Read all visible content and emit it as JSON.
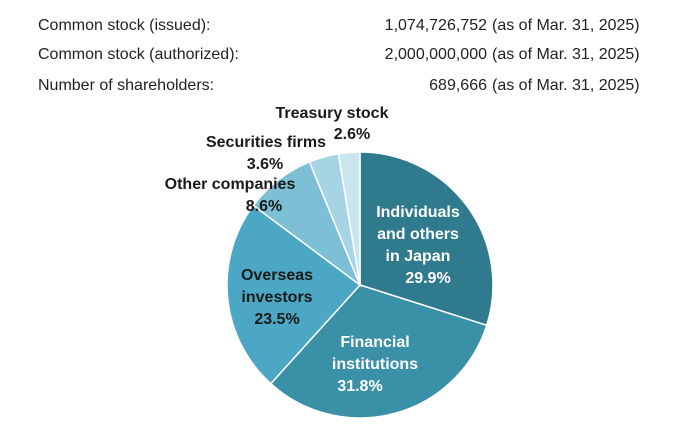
{
  "stats": [
    {
      "label": "Common stock (issued):",
      "value": "1,074,726,752",
      "note": "(as of Mar. 31, 2025)"
    },
    {
      "label": "Common stock (authorized):",
      "value": "2,000,000,000",
      "note": "(as of Mar. 31, 2025)"
    },
    {
      "label": "Number of shareholders:",
      "value": "689,666",
      "note": "(as of Mar. 31, 2025)"
    }
  ],
  "chart_data": {
    "type": "pie",
    "categories": [
      "Individuals and others in Japan",
      "Financial institutions",
      "Overseas investors",
      "Other companies",
      "Securities firms",
      "Treasury stock"
    ],
    "values": [
      29.9,
      31.8,
      23.5,
      8.6,
      3.6,
      2.6
    ],
    "value_labels": [
      "29.9%",
      "31.8%",
      "23.5%",
      "8.6%",
      "3.6%",
      "2.6%"
    ],
    "colors": [
      "#2f7b8d",
      "#3a90a7",
      "#4ba7c3",
      "#7dc0d6",
      "#a7d4e4",
      "#c9e5ef"
    ]
  }
}
